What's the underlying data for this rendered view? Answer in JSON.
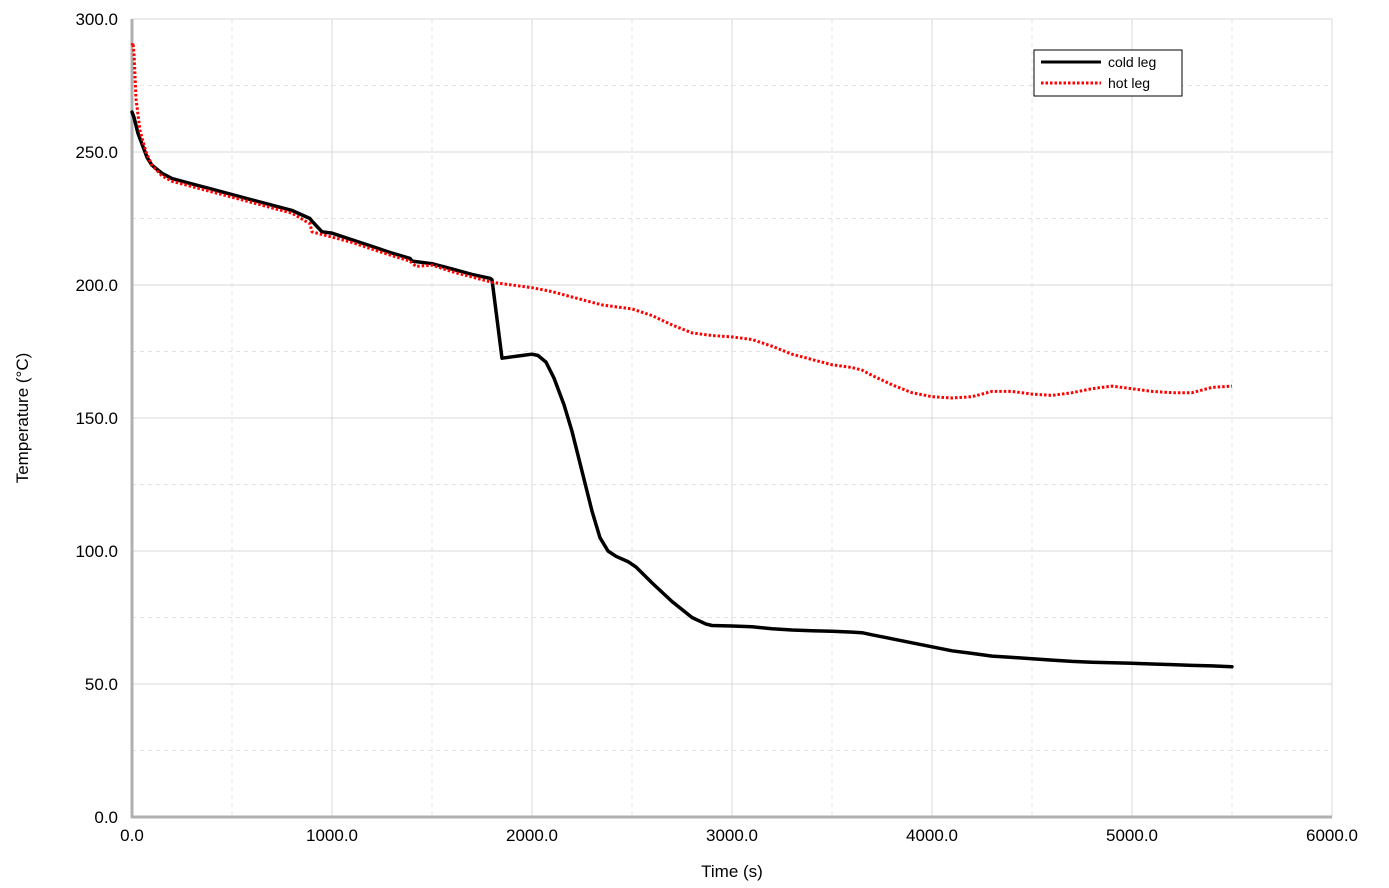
{
  "chart_data": {
    "type": "line",
    "title": "",
    "xlabel": "Time (s)",
    "ylabel": "Temperature (°C)",
    "xlim": [
      0,
      6000
    ],
    "ylim": [
      0,
      300
    ],
    "xticks": [
      0,
      1000,
      2000,
      3000,
      4000,
      5000,
      6000
    ],
    "xtick_labels": [
      "0.0",
      "1000.0",
      "2000.0",
      "3000.0",
      "4000.0",
      "5000.0",
      "6000.0"
    ],
    "yticks": [
      0,
      50,
      100,
      150,
      200,
      250,
      300
    ],
    "ytick_labels": [
      "0.0",
      "50.0",
      "100.0",
      "150.0",
      "200.0",
      "250.0",
      "300.0"
    ],
    "grid": true,
    "legend_position": "top-right",
    "series": [
      {
        "name": "cold leg",
        "color": "#000000",
        "style": "solid",
        "x": [
          0,
          10,
          20,
          30,
          50,
          75,
          100,
          150,
          200,
          300,
          400,
          500,
          600,
          700,
          800,
          890,
          900,
          950,
          1000,
          1100,
          1200,
          1300,
          1390,
          1400,
          1500,
          1600,
          1700,
          1790,
          1800,
          1850,
          1900,
          1950,
          2000,
          2030,
          2070,
          2110,
          2160,
          2200,
          2250,
          2300,
          2340,
          2380,
          2420,
          2480,
          2520,
          2600,
          2700,
          2800,
          2870,
          2900,
          3000,
          3100,
          3200,
          3300,
          3400,
          3500,
          3600,
          3650,
          3700,
          3800,
          3900,
          4000,
          4100,
          4200,
          4300,
          4400,
          4500,
          4600,
          4700,
          4800,
          4900,
          5000,
          5100,
          5200,
          5300,
          5400,
          5500
        ],
        "y": [
          265,
          263,
          260,
          257,
          253,
          248,
          245,
          242,
          240,
          238,
          236,
          234,
          232,
          230,
          228,
          225,
          224,
          220,
          219.5,
          217,
          214.5,
          212,
          210,
          209,
          208,
          206,
          204,
          202.5,
          202,
          172.5,
          173,
          173.5,
          174,
          173.5,
          171,
          165,
          155,
          145,
          130,
          115,
          105,
          100,
          98,
          96,
          94,
          88,
          81,
          75,
          72.5,
          72,
          71.8,
          71.5,
          70.8,
          70.3,
          70,
          69.8,
          69.5,
          69.3,
          68.5,
          67,
          65.5,
          64,
          62.5,
          61.5,
          60.5,
          60,
          59.5,
          59,
          58.5,
          58.2,
          58,
          57.8,
          57.5,
          57.3,
          57,
          56.8,
          56.5
        ]
      },
      {
        "name": "hot leg",
        "color": "#ff0000",
        "style": "dotted",
        "x": [
          0,
          5,
          10,
          20,
          40,
          70,
          100,
          150,
          200,
          300,
          400,
          500,
          600,
          700,
          800,
          890,
          900,
          950,
          1000,
          1100,
          1200,
          1300,
          1390,
          1420,
          1500,
          1600,
          1700,
          1800,
          1900,
          2000,
          2100,
          2200,
          2300,
          2350,
          2400,
          2500,
          2600,
          2700,
          2800,
          2900,
          3000,
          3100,
          3200,
          3300,
          3400,
          3500,
          3600,
          3650,
          3700,
          3800,
          3900,
          4000,
          4100,
          4200,
          4300,
          4400,
          4500,
          4600,
          4700,
          4800,
          4900,
          5000,
          5100,
          5200,
          5300,
          5400,
          5500
        ],
        "y": [
          290,
          291,
          287,
          270,
          258,
          250,
          245,
          241,
          239,
          237,
          235,
          233,
          231,
          229,
          227,
          223,
          220,
          219,
          218,
          216,
          213.5,
          211,
          209,
          207,
          207.5,
          205,
          203,
          201,
          200,
          199,
          197.5,
          195.5,
          193.5,
          192.5,
          192,
          191,
          188.5,
          185,
          182,
          181,
          180.5,
          179.5,
          177,
          174,
          172,
          170,
          169,
          168,
          166,
          162.5,
          159.5,
          158,
          157.5,
          158,
          160,
          160,
          159,
          158.5,
          159.5,
          161,
          162,
          161,
          160,
          159.5,
          159.5,
          161.5,
          162
        ]
      }
    ]
  }
}
